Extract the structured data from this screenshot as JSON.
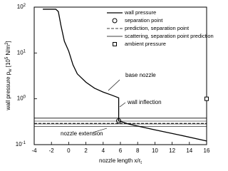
{
  "chart_data": {
    "type": "line",
    "xlabel_parts": [
      "nozzle length x/r",
      "t"
    ],
    "ylabel_parts": [
      "wall pressure p",
      "w",
      " [10",
      "5",
      " N/m",
      "2",
      "]"
    ],
    "xlim": [
      -4,
      16
    ],
    "xticks": [
      -4,
      -2,
      0,
      2,
      4,
      6,
      8,
      10,
      12,
      14,
      16
    ],
    "ylim": [
      0.1,
      100
    ],
    "log_y": true,
    "yticks": [
      {
        "value": 0.1,
        "label": "10",
        "exponent": "-1"
      },
      {
        "value": 1,
        "label": "10",
        "exponent": "0"
      },
      {
        "value": 10,
        "label": "10",
        "exponent": "1"
      },
      {
        "value": 100,
        "label": "10",
        "exponent": "2"
      }
    ],
    "series": [
      {
        "name": "wall pressure",
        "style": "solid",
        "color": "#000000",
        "x": [
          -3,
          -1.5,
          -1.2,
          -0.9,
          -0.5,
          0,
          0.5,
          1,
          2,
          3,
          4,
          5,
          5.8,
          5.8,
          7,
          10,
          13,
          16
        ],
        "values": [
          90,
          90,
          80,
          40,
          18,
          11,
          5.5,
          3.5,
          2.3,
          1.7,
          1.4,
          1.2,
          1.05,
          0.33,
          0.28,
          0.21,
          0.16,
          0.12
        ]
      },
      {
        "name": "separation point",
        "style": "circle",
        "color": "#000000",
        "x": [
          5.8
        ],
        "values": [
          0.33
        ]
      },
      {
        "name": "prediction, separation point",
        "style": "dashed",
        "color": "#000000",
        "x": [
          -4,
          16
        ],
        "values": [
          0.29,
          0.29
        ]
      },
      {
        "name": "scattering, separation point prediction",
        "style": "band",
        "color": "#000000",
        "x": [
          -4,
          16
        ],
        "lower": [
          0.25,
          0.25
        ],
        "upper": [
          0.38,
          0.38
        ]
      },
      {
        "name": "ambient pressure",
        "style": "square",
        "color": "#000000",
        "x": [
          16
        ],
        "values": [
          1.0
        ]
      }
    ],
    "annotations": [
      "base nozzle",
      "wall inflection",
      "nozzle extension"
    ]
  }
}
